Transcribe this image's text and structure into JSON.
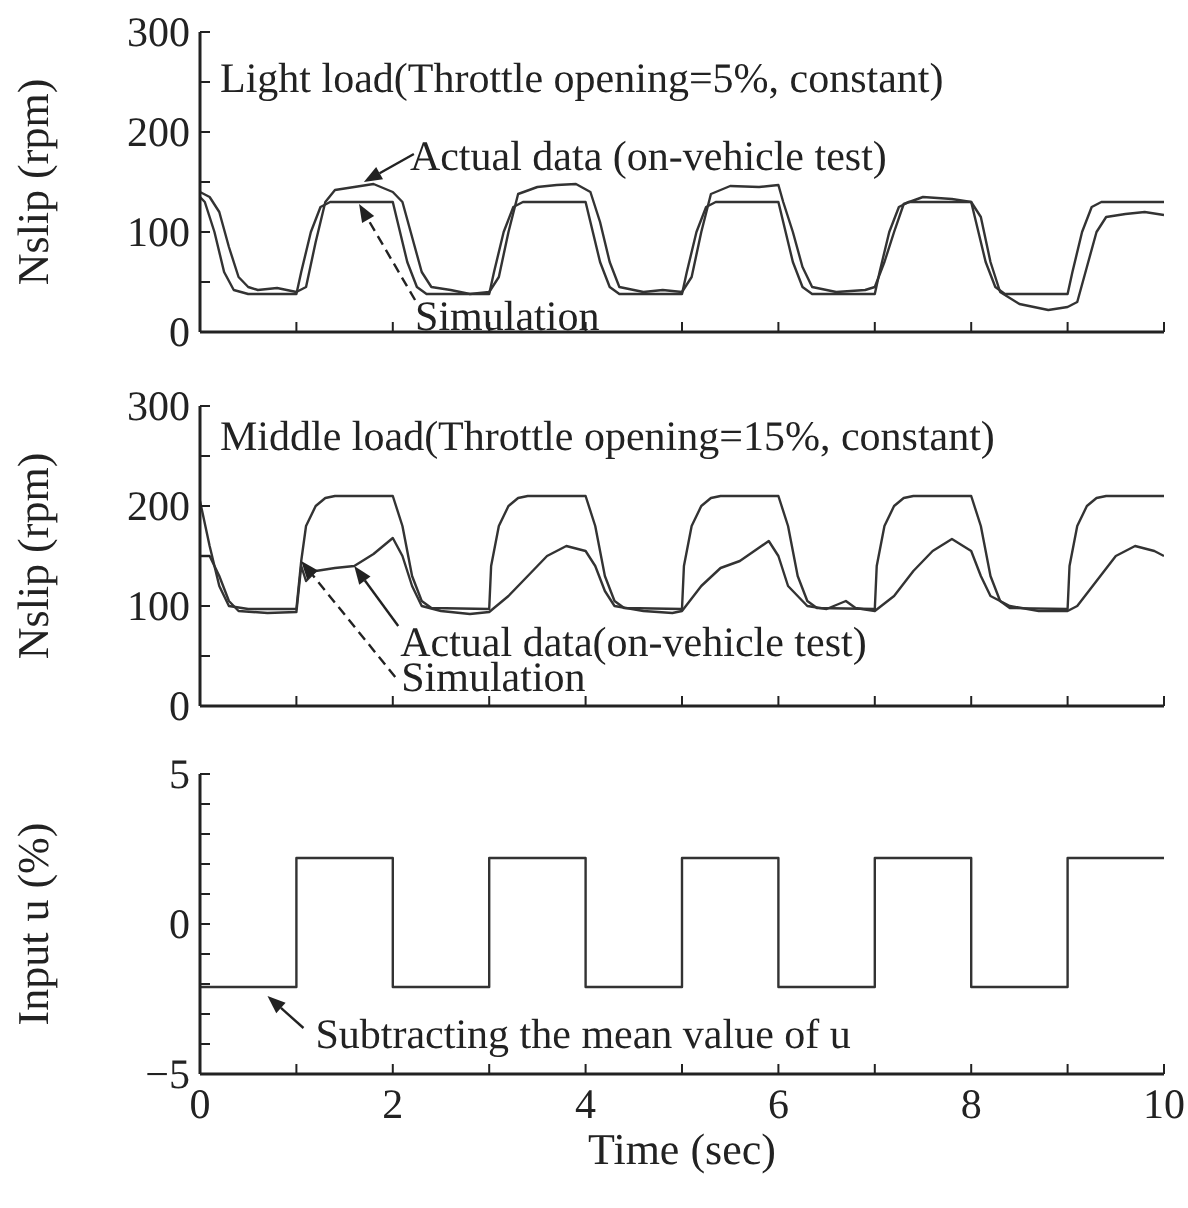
{
  "chart_data": [
    {
      "type": "line",
      "title": "Light load(Throttle opening=5%, constant)",
      "ylabel": "Nslip (rpm)",
      "xlim": [
        0,
        10
      ],
      "ylim": [
        0,
        300
      ],
      "tick_labels": "y",
      "xticks": [
        0,
        {
          "value": 1,
          "label": null
        },
        2,
        {
          "value": 3,
          "label": null
        },
        4,
        {
          "value": 5,
          "label": null
        },
        6,
        {
          "value": 7,
          "label": null
        },
        8,
        {
          "value": 9,
          "label": null
        },
        10
      ],
      "yticks": [
        0,
        {
          "value": 50,
          "label": null
        },
        100,
        {
          "value": 150,
          "label": null
        },
        200,
        {
          "value": 250,
          "label": null
        },
        300
      ],
      "series": [
        {
          "color": "#333333",
          "x": [
            0,
            0.05,
            0.15,
            0.25,
            0.35,
            0.5,
            1.0,
            1.05,
            1.15,
            1.25,
            1.35,
            2.0,
            2.05,
            2.15,
            2.25,
            2.35,
            3.0,
            3.05,
            3.15,
            3.25,
            3.35,
            4.0,
            4.05,
            4.15,
            4.25,
            4.35,
            5.0,
            5.05,
            5.15,
            5.25,
            5.35,
            6.0,
            6.05,
            6.15,
            6.25,
            6.35,
            7.0,
            7.05,
            7.15,
            7.25,
            7.35,
            8.0,
            8.05,
            8.15,
            8.25,
            8.35,
            9.0,
            9.05,
            9.15,
            9.25,
            9.35,
            10
          ],
          "values": [
            135,
            130,
            100,
            60,
            42,
            38,
            38,
            60,
            100,
            125,
            130,
            130,
            110,
            70,
            45,
            38,
            38,
            60,
            100,
            125,
            130,
            130,
            110,
            70,
            45,
            38,
            38,
            60,
            100,
            125,
            130,
            130,
            110,
            70,
            45,
            38,
            38,
            60,
            100,
            125,
            130,
            130,
            110,
            70,
            45,
            38,
            38,
            60,
            100,
            125,
            130,
            130
          ]
        },
        {
          "color": "#333333",
          "x": [
            0,
            0.1,
            0.2,
            0.3,
            0.4,
            0.5,
            0.6,
            0.8,
            1.0,
            1.1,
            1.2,
            1.3,
            1.4,
            1.6,
            1.8,
            2.0,
            2.1,
            2.2,
            2.3,
            2.4,
            2.6,
            2.8,
            3.0,
            3.1,
            3.2,
            3.3,
            3.5,
            3.7,
            3.9,
            4.05,
            4.15,
            4.25,
            4.35,
            4.6,
            4.8,
            5.0,
            5.1,
            5.2,
            5.3,
            5.5,
            5.8,
            6.0,
            6.05,
            6.15,
            6.25,
            6.35,
            6.6,
            6.9,
            7.0,
            7.1,
            7.2,
            7.3,
            7.5,
            7.8,
            8.0,
            8.1,
            8.2,
            8.3,
            8.5,
            8.8,
            9.0,
            9.1,
            9.2,
            9.3,
            9.4,
            9.6,
            9.8,
            10
          ],
          "values": [
            140,
            135,
            120,
            85,
            55,
            45,
            42,
            44,
            40,
            45,
            90,
            130,
            142,
            145,
            148,
            140,
            130,
            95,
            60,
            45,
            42,
            38,
            40,
            55,
            100,
            138,
            145,
            147,
            148,
            140,
            110,
            70,
            45,
            40,
            42,
            40,
            55,
            100,
            138,
            146,
            145,
            147,
            130,
            100,
            65,
            45,
            40,
            42,
            45,
            70,
            100,
            128,
            135,
            133,
            130,
            115,
            70,
            40,
            28,
            22,
            25,
            30,
            65,
            100,
            115,
            118,
            120,
            117
          ]
        }
      ],
      "annotations": [
        {
          "text": "Actual data (on-vehicle test)",
          "x": 1.7,
          "y": 150
        },
        {
          "text": "Simulation",
          "x": 1.65,
          "y": 128
        }
      ]
    },
    {
      "type": "line",
      "title": "Middle load(Throttle opening=15%, constant)",
      "ylabel": "Nslip (rpm)",
      "xlim": [
        0,
        10
      ],
      "ylim": [
        0,
        300
      ],
      "tick_labels": "y",
      "xticks": [
        0,
        {
          "value": 1,
          "label": null
        },
        2,
        {
          "value": 3,
          "label": null
        },
        4,
        {
          "value": 5,
          "label": null
        },
        6,
        {
          "value": 7,
          "label": null
        },
        8,
        {
          "value": 9,
          "label": null
        },
        10
      ],
      "yticks": [
        0,
        {
          "value": 50,
          "label": null
        },
        100,
        {
          "value": 150,
          "label": null
        },
        200,
        {
          "value": 250,
          "label": null
        },
        300
      ],
      "series": [
        {
          "color": "#333333",
          "x": [
            0,
            0.1,
            0.2,
            0.3,
            0.5,
            1.0,
            1.05,
            1.1,
            1.2,
            1.3,
            1.4,
            2.0,
            2.1,
            2.2,
            2.3,
            2.4,
            3.0,
            3.02,
            3.1,
            3.2,
            3.3,
            3.4,
            4.0,
            4.1,
            4.2,
            4.3,
            4.4,
            5.0,
            5.02,
            5.1,
            5.2,
            5.3,
            5.4,
            6.0,
            6.1,
            6.2,
            6.3,
            6.4,
            7.0,
            7.02,
            7.1,
            7.2,
            7.3,
            7.4,
            8.0,
            8.1,
            8.2,
            8.3,
            8.4,
            9.0,
            9.02,
            9.1,
            9.2,
            9.3,
            9.4,
            10
          ],
          "values": [
            205,
            160,
            120,
            100,
            97,
            97,
            145,
            180,
            200,
            208,
            210,
            210,
            180,
            130,
            105,
            98,
            97,
            140,
            180,
            200,
            208,
            210,
            210,
            180,
            130,
            105,
            98,
            97,
            140,
            180,
            200,
            208,
            210,
            210,
            180,
            130,
            105,
            98,
            97,
            140,
            180,
            200,
            208,
            210,
            210,
            180,
            130,
            105,
            98,
            97,
            140,
            180,
            200,
            208,
            210,
            210
          ]
        },
        {
          "color": "#333333",
          "x": [
            0,
            0.1,
            0.2,
            0.3,
            0.4,
            0.7,
            1.0,
            1.05,
            1.1,
            1.2,
            1.4,
            1.6,
            1.8,
            2.0,
            2.1,
            2.2,
            2.3,
            2.5,
            2.8,
            3.0,
            3.2,
            3.4,
            3.6,
            3.8,
            4.0,
            4.1,
            4.2,
            4.3,
            4.6,
            4.9,
            5.0,
            5.2,
            5.4,
            5.6,
            5.9,
            6.0,
            6.1,
            6.3,
            6.5,
            6.7,
            6.8,
            7.0,
            7.2,
            7.4,
            7.6,
            7.8,
            8.0,
            8.1,
            8.2,
            8.4,
            8.7,
            9.0,
            9.1,
            9.3,
            9.5,
            9.7,
            9.9,
            10
          ],
          "values": [
            150,
            150,
            130,
            105,
            95,
            93,
            94,
            140,
            125,
            135,
            138,
            140,
            152,
            168,
            150,
            120,
            100,
            95,
            92,
            94,
            110,
            130,
            150,
            160,
            155,
            140,
            115,
            100,
            95,
            93,
            95,
            120,
            138,
            145,
            165,
            150,
            120,
            100,
            97,
            105,
            98,
            95,
            110,
            135,
            155,
            167,
            155,
            130,
            110,
            100,
            95,
            95,
            100,
            125,
            150,
            160,
            155,
            150
          ]
        }
      ],
      "annotations": [
        {
          "text": "Actual data(on-vehicle test)",
          "x": 1.6,
          "y": 140
        },
        {
          "text": "Simulation",
          "x": 1.05,
          "y": 145
        }
      ]
    },
    {
      "type": "line",
      "xlabel": "Time (sec)",
      "ylabel": "Input u (%)",
      "xlim": [
        0,
        10
      ],
      "ylim": [
        -5,
        5
      ],
      "xticks": [
        0,
        {
          "value": 1,
          "label": null
        },
        2,
        {
          "value": 3,
          "label": null
        },
        4,
        {
          "value": 5,
          "label": null
        },
        6,
        {
          "value": 7,
          "label": null
        },
        8,
        {
          "value": 9,
          "label": null
        },
        10
      ],
      "yticks": [
        {
          "value": -5,
          "label": "−5"
        },
        {
          "value": -4,
          "label": null
        },
        {
          "value": -3,
          "label": null
        },
        {
          "value": -2,
          "label": null
        },
        {
          "value": -1,
          "label": null
        },
        0,
        {
          "value": 1,
          "label": null
        },
        {
          "value": 2,
          "label": null
        },
        {
          "value": 3,
          "label": null
        },
        {
          "value": 4,
          "label": null
        },
        5
      ],
      "series": [
        {
          "color": "#333333",
          "x": [
            0,
            1,
            1,
            2,
            2,
            3,
            3,
            4,
            4,
            5,
            5,
            6,
            6,
            7,
            7,
            8,
            8,
            9,
            9,
            10
          ],
          "values": [
            -2.1,
            -2.1,
            2.2,
            2.2,
            -2.1,
            -2.1,
            2.2,
            2.2,
            -2.1,
            -2.1,
            2.2,
            2.2,
            -2.1,
            -2.1,
            2.2,
            2.2,
            -2.1,
            -2.1,
            2.2,
            2.2
          ]
        }
      ],
      "annotations": [
        {
          "text": "Subtracting the mean value of u",
          "x": 0.7,
          "y": -2.4
        }
      ]
    }
  ]
}
